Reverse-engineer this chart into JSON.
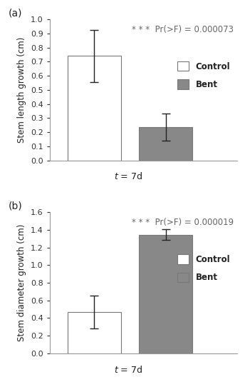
{
  "panel_a": {
    "label": "(a)",
    "bars": [
      {
        "name": "Control",
        "value": 0.74,
        "error": 0.185,
        "color": "#ffffff",
        "edgecolor": "#777777"
      },
      {
        "name": "Bent",
        "value": 0.235,
        "error": 0.095,
        "color": "#888888",
        "edgecolor": "#777777"
      }
    ],
    "ylabel": "Stem length growth (cm)",
    "xlabel": "t=7d",
    "ylim": [
      0,
      1.0
    ],
    "yticks": [
      0,
      0.1,
      0.2,
      0.3,
      0.4,
      0.5,
      0.6,
      0.7,
      0.8,
      0.9,
      1.0
    ],
    "stat_text": "* * *  Pr(>F) = 0.000073"
  },
  "panel_b": {
    "label": "(b)",
    "bars": [
      {
        "name": "Control",
        "value": 0.47,
        "error": 0.185,
        "color": "#ffffff",
        "edgecolor": "#777777"
      },
      {
        "name": "Bent",
        "value": 1.345,
        "error": 0.06,
        "color": "#888888",
        "edgecolor": "#777777"
      }
    ],
    "ylabel": "Stem diameter growth (cm)",
    "xlabel": "t=7d",
    "ylim": [
      0,
      1.6
    ],
    "yticks": [
      0,
      0.2,
      0.4,
      0.6,
      0.8,
      1.0,
      1.2,
      1.4,
      1.6
    ],
    "stat_text": "* * *  Pr(>F) = 0.000019"
  },
  "legend_labels": [
    "Control",
    "Bent"
  ],
  "legend_colors": [
    "#ffffff",
    "#888888"
  ],
  "legend_edgecolors": [
    "#777777",
    "#777777"
  ],
  "bar_width": 0.3,
  "bar_positions": [
    0.25,
    0.65
  ],
  "xlim": [
    0.0,
    1.05
  ],
  "background_color": "#ffffff",
  "fontsize_label": 8.5,
  "fontsize_tick": 8,
  "fontsize_stat": 8.5,
  "fontsize_panel": 10,
  "fontsize_legend": 8.5
}
